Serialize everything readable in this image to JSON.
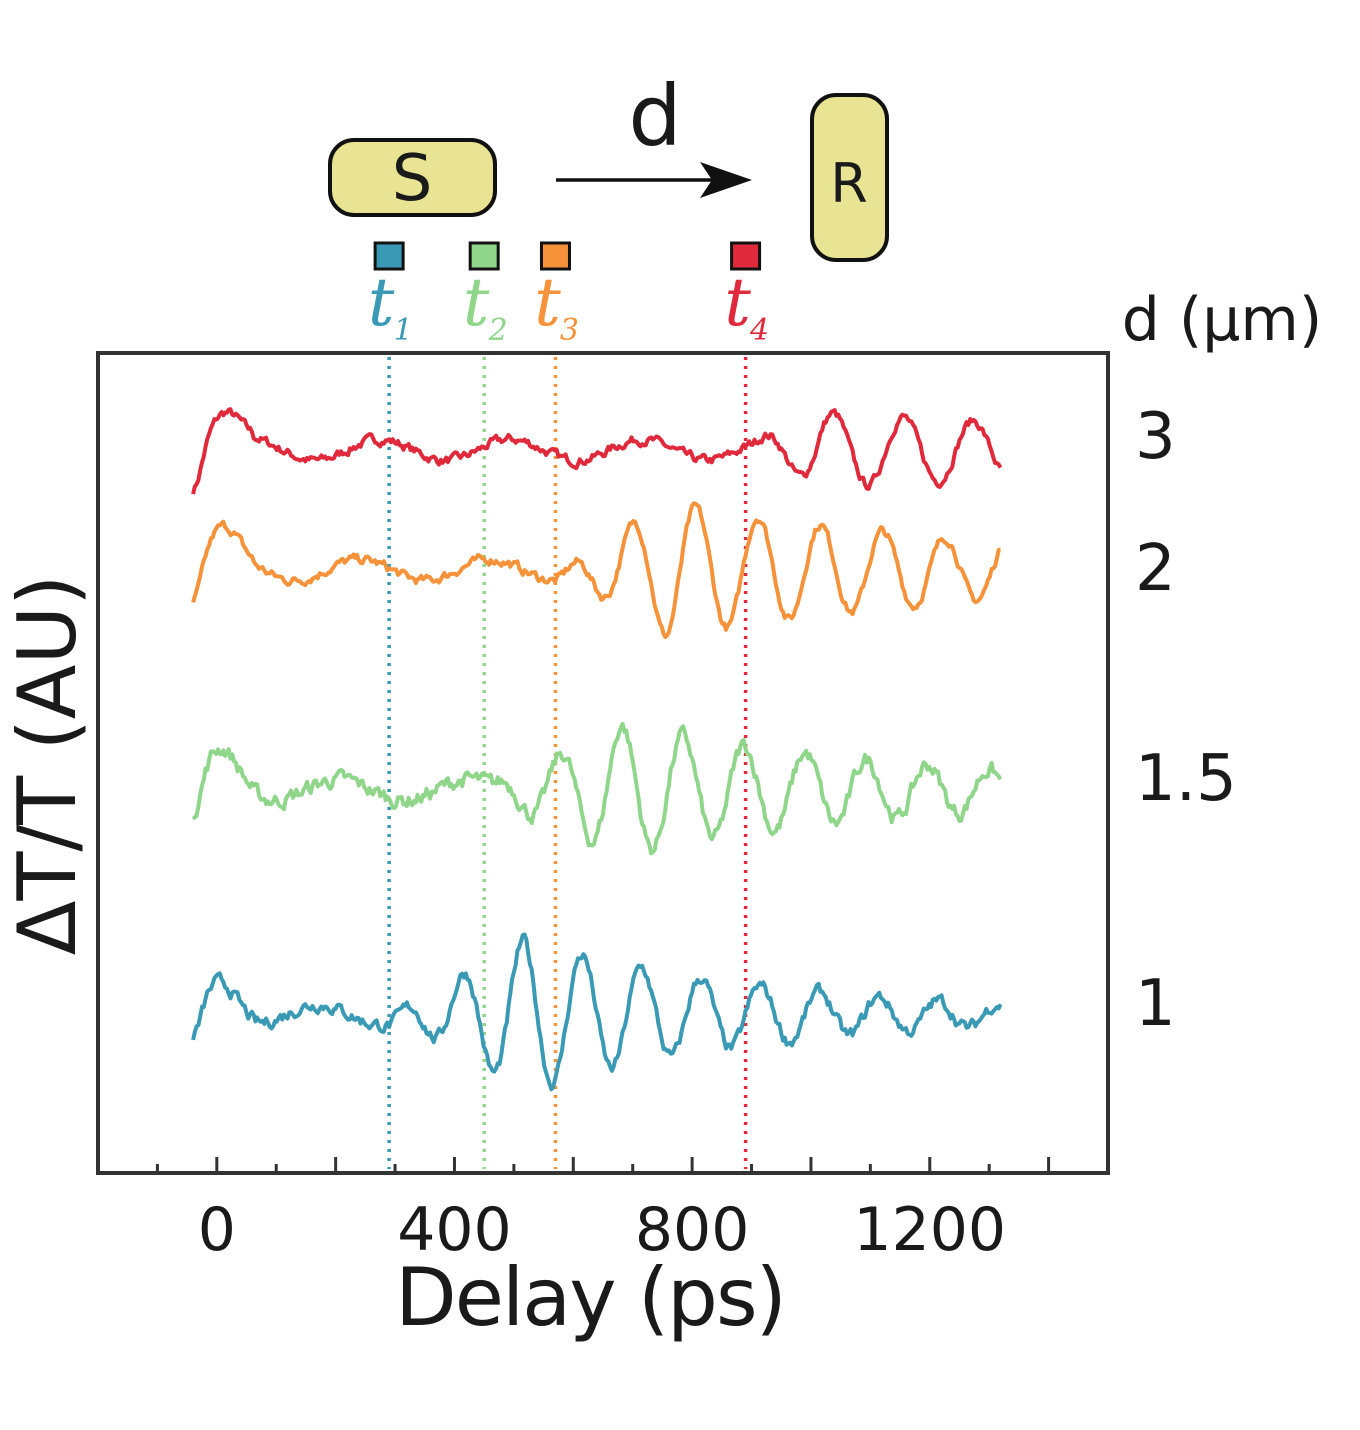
{
  "chart_data": {
    "type": "line",
    "xlabel": "Delay (ps)",
    "ylabel": "ΔT/T (AU)",
    "xlim": [
      -200,
      1500
    ],
    "x_ticks": [
      0,
      400,
      800,
      1200
    ],
    "x_tick_labels": [
      "0",
      "400",
      "800",
      "1200"
    ],
    "legend_title": "d (μm)",
    "grid": false,
    "schematic": {
      "source_label": "S",
      "receiver_label": "R",
      "distance_label": "d"
    },
    "time_markers": [
      {
        "label": "t",
        "sub": "1",
        "x": 290,
        "color": "#3a9ab5"
      },
      {
        "label": "t",
        "sub": "2",
        "x": 450,
        "color": "#8fd68b"
      },
      {
        "label": "t",
        "sub": "3",
        "x": 570,
        "color": "#f5923a"
      },
      {
        "label": "t",
        "sub": "4",
        "x": 890,
        "color": "#e02a3c"
      }
    ],
    "series": [
      {
        "name": "3",
        "color": "#e02a3c",
        "onset": 890,
        "period": 118,
        "amp_peak": 0.9,
        "x_peak": 1020,
        "decay": 1000,
        "noise": 0.15
      },
      {
        "name": "2",
        "color": "#f5923a",
        "onset": 570,
        "period": 105,
        "amp_peak": 1.6,
        "x_peak": 760,
        "decay": 650,
        "noise": 0.15
      },
      {
        "name": "1.5",
        "color": "#8fd68b",
        "onset": 450,
        "period": 103,
        "amp_peak": 1.55,
        "x_peak": 680,
        "decay": 550,
        "noise": 0.25
      },
      {
        "name": "1",
        "color": "#3a9ab5",
        "onset": 290,
        "period": 100,
        "amp_peak": 1.8,
        "x_peak": 520,
        "decay": 420,
        "noise": 0.2
      }
    ],
    "x_range_data": [
      -40,
      1320
    ]
  }
}
